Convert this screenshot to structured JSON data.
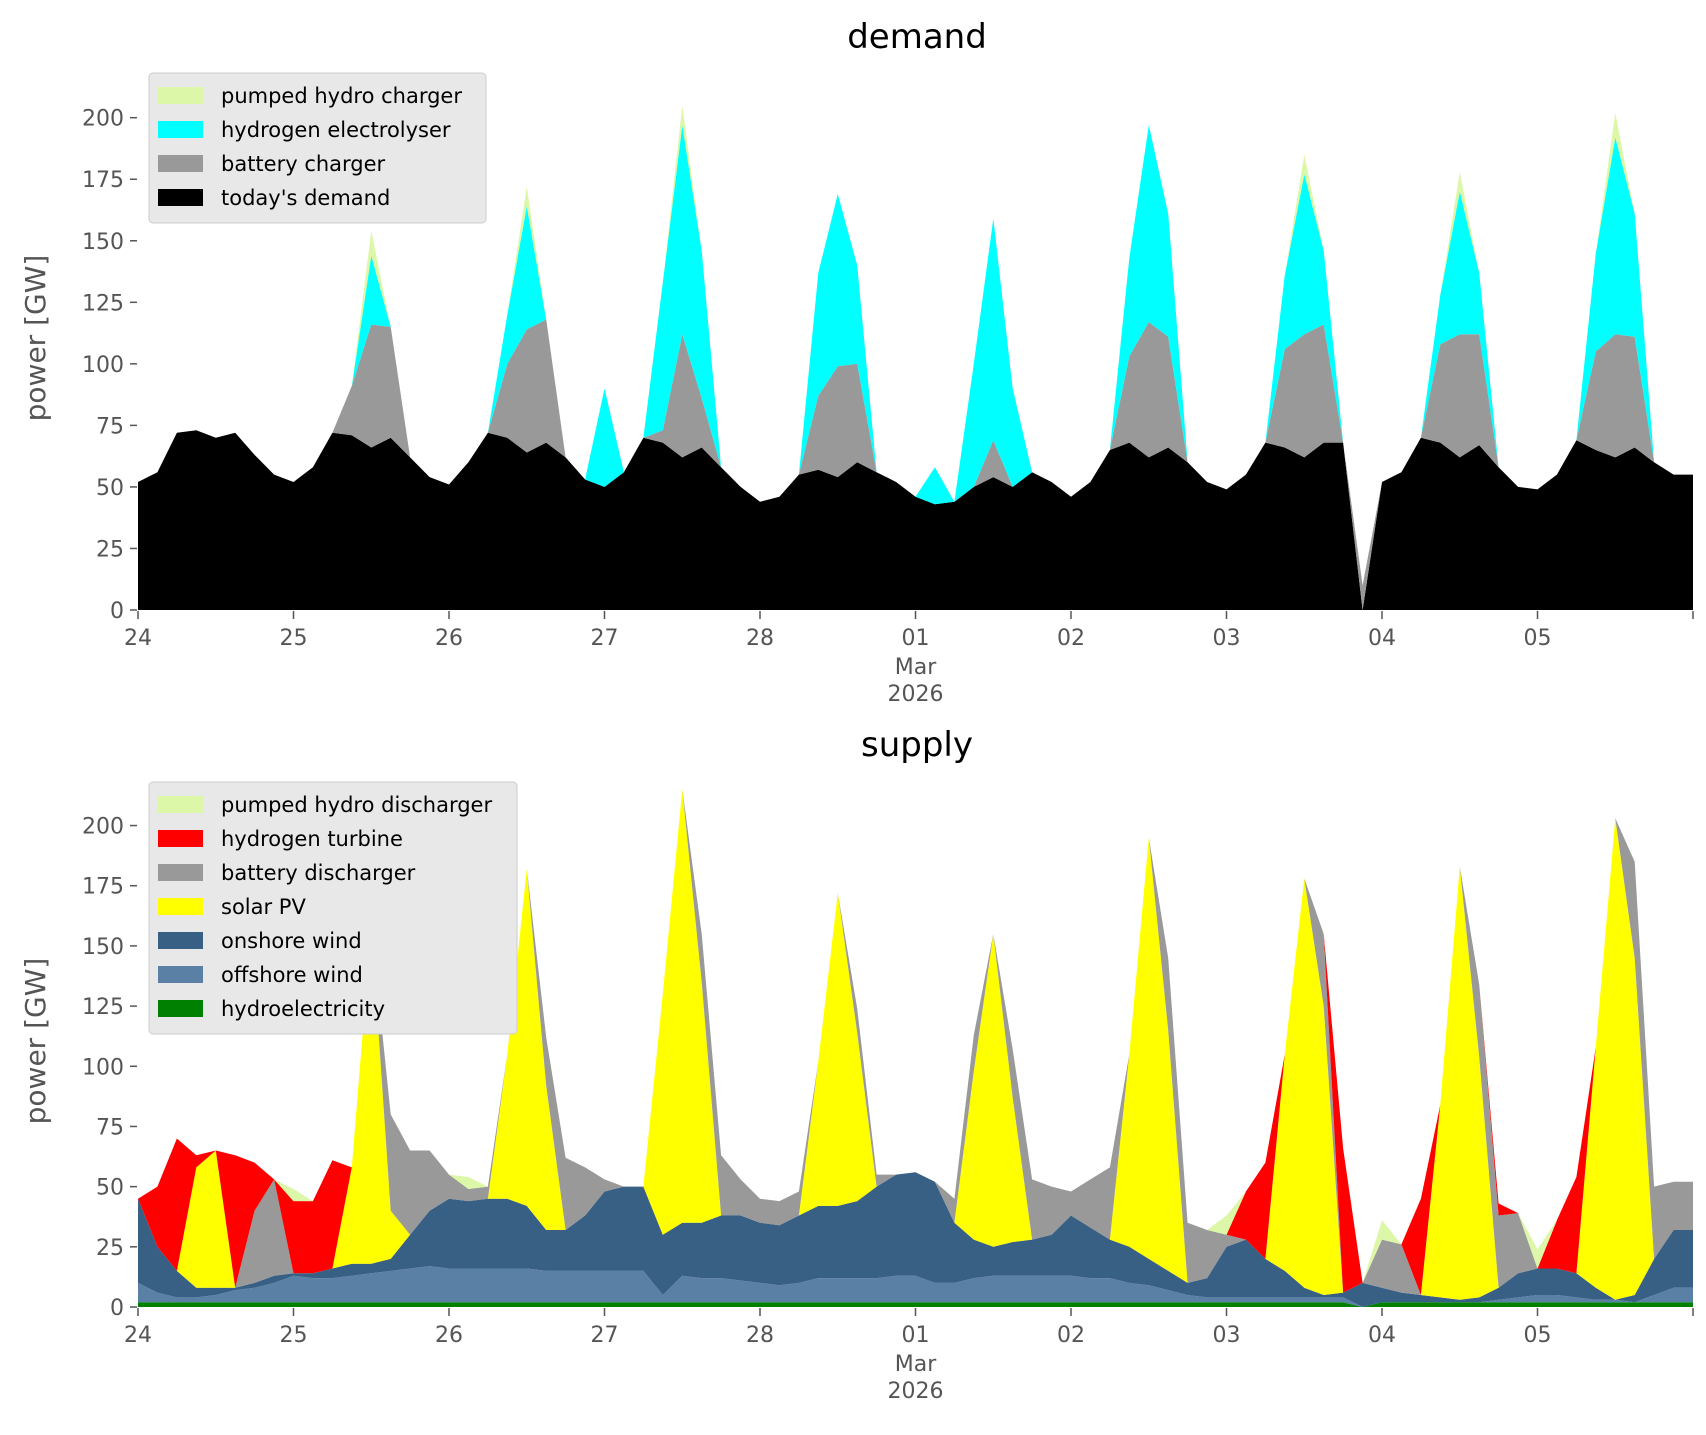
{
  "chart_data": [
    {
      "type": "area",
      "stacked": true,
      "title": "demand",
      "ylabel": "power [GW]",
      "xlabel": "",
      "ylim": [
        0,
        221
      ],
      "yticks": [
        0,
        25,
        50,
        75,
        100,
        125,
        150,
        175,
        200
      ],
      "xticks": [
        "24",
        "25",
        "26",
        "27",
        "28",
        "01",
        "02",
        "03",
        "04",
        "05"
      ],
      "xtick_sub": [
        "Mar",
        "2026"
      ],
      "x_start": "2026-02-24 00:00",
      "x_end": "2026-03-06 00:00",
      "freq": "3h",
      "legend": "top-left",
      "grid": false,
      "series": [
        {
          "name": "today's demand",
          "color": "#000000",
          "values": [
            52,
            56,
            72,
            73,
            70,
            72,
            63,
            55,
            52,
            58,
            72,
            71,
            66,
            70,
            62,
            54,
            51,
            60,
            72,
            70,
            64,
            68,
            62,
            53,
            50,
            56,
            70,
            68,
            62,
            66,
            58,
            50,
            44,
            46,
            55,
            57,
            54,
            60,
            56,
            52,
            46,
            43,
            44,
            50,
            54,
            50,
            56,
            52,
            46,
            52,
            65,
            68,
            62,
            66,
            60,
            52,
            49,
            55,
            68,
            66,
            62,
            68,
            68,
            0,
            52,
            56,
            70,
            68,
            62,
            67,
            58,
            50,
            49,
            55,
            69,
            65,
            62,
            66,
            60,
            55
          ]
        },
        {
          "name": "battery charger",
          "color": "#999999",
          "values": [
            0,
            0,
            0,
            0,
            0,
            0,
            0,
            0,
            0,
            0,
            0,
            20,
            50,
            45,
            0,
            0,
            0,
            0,
            0,
            30,
            50,
            50,
            0,
            0,
            0,
            0,
            0,
            5,
            50,
            20,
            0,
            0,
            0,
            0,
            0,
            30,
            45,
            40,
            0,
            0,
            0,
            0,
            0,
            0,
            15,
            0,
            0,
            0,
            0,
            0,
            0,
            35,
            55,
            45,
            0,
            0,
            0,
            0,
            0,
            40,
            50,
            48,
            0,
            10,
            0,
            0,
            0,
            40,
            50,
            45,
            0,
            0,
            0,
            0,
            0,
            40,
            50,
            45,
            0,
            0
          ]
        },
        {
          "name": "hydrogen electrolyser",
          "color": "#00ffff",
          "values": [
            0,
            0,
            0,
            0,
            0,
            0,
            0,
            0,
            0,
            0,
            0,
            0,
            28,
            0,
            0,
            0,
            0,
            0,
            0,
            20,
            50,
            0,
            0,
            0,
            40,
            0,
            0,
            60,
            85,
            60,
            0,
            0,
            0,
            0,
            0,
            50,
            70,
            40,
            0,
            0,
            0,
            15,
            0,
            50,
            90,
            40,
            0,
            0,
            0,
            0,
            0,
            40,
            80,
            50,
            0,
            0,
            0,
            0,
            0,
            30,
            65,
            30,
            0,
            0,
            0,
            0,
            0,
            20,
            58,
            25,
            0,
            0,
            0,
            0,
            0,
            40,
            80,
            50,
            0,
            0
          ]
        },
        {
          "name": "pumped hydro charger",
          "color": "#dcf7a8",
          "values": [
            0,
            0,
            0,
            0,
            0,
            0,
            0,
            0,
            0,
            0,
            0,
            0,
            10,
            0,
            0,
            0,
            0,
            0,
            0,
            0,
            8,
            0,
            0,
            0,
            0,
            0,
            0,
            0,
            8,
            0,
            0,
            0,
            0,
            0,
            0,
            0,
            0,
            0,
            0,
            0,
            0,
            0,
            0,
            0,
            0,
            0,
            0,
            0,
            0,
            0,
            0,
            0,
            0,
            0,
            0,
            0,
            0,
            0,
            0,
            0,
            8,
            0,
            0,
            0,
            0,
            0,
            0,
            0,
            8,
            0,
            0,
            0,
            0,
            0,
            0,
            0,
            10,
            0,
            0,
            0
          ]
        }
      ],
      "legend_order": [
        "pumped hydro charger",
        "hydrogen electrolyser",
        "battery charger",
        "today's demand"
      ]
    },
    {
      "type": "area",
      "stacked": true,
      "title": "supply",
      "ylabel": "power [GW]",
      "xlabel": "",
      "ylim": [
        0,
        221
      ],
      "yticks": [
        0,
        25,
        50,
        75,
        100,
        125,
        150,
        175,
        200
      ],
      "xticks": [
        "24",
        "25",
        "26",
        "27",
        "28",
        "01",
        "02",
        "03",
        "04",
        "05"
      ],
      "xtick_sub": [
        "Mar",
        "2026"
      ],
      "x_start": "2026-02-24 00:00",
      "x_end": "2026-03-06 00:00",
      "freq": "3h",
      "legend": "top-left",
      "grid": false,
      "series": [
        {
          "name": "hydroelectricity",
          "color": "#008000",
          "values": [
            2,
            2,
            2,
            2,
            2,
            2,
            2,
            2,
            2,
            2,
            2,
            2,
            2,
            2,
            2,
            2,
            2,
            2,
            2,
            2,
            2,
            2,
            2,
            2,
            2,
            2,
            2,
            2,
            2,
            2,
            2,
            2,
            2,
            2,
            2,
            2,
            2,
            2,
            2,
            2,
            2,
            2,
            2,
            2,
            2,
            2,
            2,
            2,
            2,
            2,
            2,
            2,
            2,
            2,
            2,
            2,
            2,
            2,
            2,
            2,
            2,
            2,
            2,
            0,
            2,
            2,
            2,
            2,
            2,
            2,
            2,
            2,
            2,
            2,
            2,
            2,
            2,
            2,
            2,
            2
          ]
        },
        {
          "name": "offshore wind",
          "color": "#5b80a5",
          "values": [
            8,
            4,
            2,
            2,
            3,
            5,
            6,
            8,
            11,
            10,
            10,
            11,
            12,
            13,
            14,
            15,
            14,
            14,
            14,
            14,
            14,
            13,
            13,
            13,
            13,
            13,
            13,
            3,
            11,
            10,
            10,
            9,
            8,
            7,
            8,
            10,
            10,
            10,
            10,
            11,
            11,
            8,
            8,
            10,
            11,
            11,
            11,
            11,
            11,
            10,
            10,
            8,
            7,
            5,
            3,
            2,
            2,
            2,
            2,
            2,
            2,
            2,
            2,
            0,
            0,
            0,
            0,
            0,
            0,
            0,
            1,
            2,
            3,
            3,
            2,
            1,
            1,
            0,
            3,
            6
          ]
        },
        {
          "name": "onshore wind",
          "color": "#386085",
          "values": [
            35,
            19,
            11,
            4,
            3,
            1,
            2,
            3,
            1,
            2,
            4,
            5,
            4,
            5,
            14,
            23,
            29,
            28,
            29,
            29,
            26,
            17,
            17,
            23,
            33,
            35,
            35,
            25,
            22,
            23,
            26,
            27,
            25,
            25,
            28,
            30,
            30,
            32,
            38,
            42,
            43,
            42,
            25,
            16,
            12,
            14,
            15,
            17,
            25,
            21,
            16,
            15,
            11,
            8,
            5,
            8,
            21,
            24,
            16,
            11,
            4,
            1,
            2,
            10,
            6,
            4,
            3,
            2,
            1,
            2,
            5,
            10,
            11,
            11,
            10,
            5,
            0,
            3,
            15,
            24
          ]
        },
        {
          "name": "solar PV",
          "color": "#ffff00",
          "values": [
            0,
            0,
            0,
            50,
            57,
            0,
            0,
            0,
            0,
            0,
            0,
            40,
            140,
            20,
            0,
            0,
            0,
            0,
            0,
            60,
            140,
            60,
            0,
            0,
            0,
            0,
            0,
            100,
            180,
            100,
            0,
            0,
            0,
            0,
            0,
            60,
            130,
            70,
            0,
            0,
            0,
            0,
            0,
            70,
            130,
            60,
            0,
            0,
            0,
            0,
            0,
            80,
            175,
            100,
            0,
            0,
            0,
            0,
            0,
            90,
            170,
            120,
            0,
            0,
            0,
            0,
            0,
            80,
            180,
            100,
            0,
            0,
            0,
            0,
            0,
            100,
            200,
            140,
            0,
            0
          ]
        },
        {
          "name": "battery discharger",
          "color": "#999999",
          "values": [
            0,
            0,
            0,
            0,
            0,
            0,
            30,
            40,
            0,
            0,
            0,
            0,
            0,
            40,
            35,
            25,
            10,
            5,
            5,
            0,
            0,
            20,
            30,
            20,
            5,
            0,
            0,
            0,
            0,
            20,
            25,
            15,
            10,
            10,
            10,
            0,
            0,
            10,
            5,
            0,
            0,
            0,
            10,
            15,
            0,
            20,
            25,
            20,
            10,
            20,
            30,
            0,
            0,
            30,
            25,
            20,
            5,
            0,
            0,
            0,
            0,
            30,
            0,
            0,
            20,
            20,
            0,
            0,
            0,
            30,
            30,
            25,
            0,
            0,
            0,
            0,
            0,
            40,
            30,
            20
          ]
        },
        {
          "name": "hydrogen turbine",
          "color": "#ff0000",
          "values": [
            0,
            25,
            55,
            5,
            0,
            55,
            20,
            0,
            30,
            30,
            45,
            0,
            0,
            0,
            0,
            0,
            0,
            0,
            0,
            0,
            0,
            0,
            0,
            0,
            0,
            0,
            0,
            0,
            0,
            0,
            0,
            0,
            0,
            0,
            0,
            0,
            0,
            0,
            0,
            0,
            0,
            0,
            0,
            0,
            0,
            0,
            0,
            0,
            0,
            0,
            0,
            0,
            0,
            0,
            0,
            0,
            0,
            20,
            40,
            0,
            0,
            0,
            60,
            0,
            0,
            0,
            40,
            0,
            0,
            0,
            5,
            0,
            0,
            20,
            40,
            0,
            0,
            0,
            0,
            0
          ]
        },
        {
          "name": "pumped hydro discharger",
          "color": "#dcf7a8",
          "values": [
            0,
            0,
            0,
            0,
            0,
            0,
            0,
            0,
            5,
            0,
            0,
            0,
            0,
            0,
            0,
            0,
            0,
            5,
            0,
            0,
            0,
            0,
            0,
            0,
            0,
            0,
            0,
            0,
            0,
            0,
            0,
            0,
            0,
            0,
            0,
            0,
            0,
            0,
            0,
            0,
            0,
            0,
            0,
            0,
            0,
            0,
            0,
            0,
            0,
            0,
            0,
            0,
            0,
            0,
            0,
            0,
            8,
            0,
            0,
            0,
            0,
            0,
            0,
            0,
            8,
            0,
            0,
            0,
            0,
            0,
            0,
            0,
            8,
            0,
            0,
            0,
            0,
            0,
            0,
            0
          ]
        }
      ],
      "legend_order": [
        "pumped hydro discharger",
        "hydrogen turbine",
        "battery discharger",
        "solar PV",
        "onshore wind",
        "offshore wind",
        "hydroelectricity"
      ]
    }
  ]
}
